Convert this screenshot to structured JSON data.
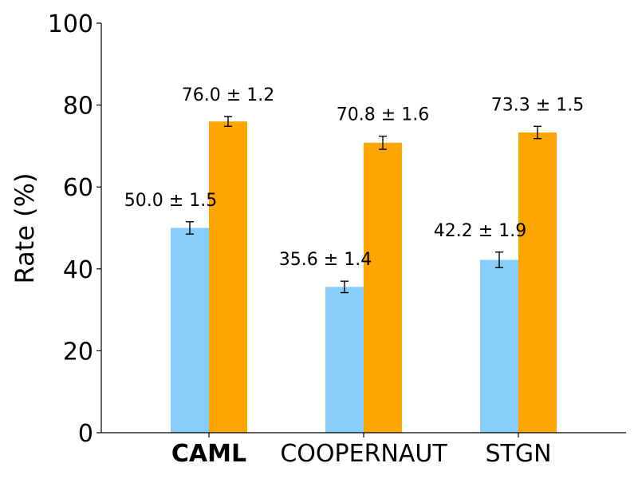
{
  "chart_data": {
    "type": "bar",
    "title": "",
    "xlabel": "",
    "ylabel": "Rate (%)",
    "ylim": [
      0,
      100
    ],
    "yticks": [
      "0",
      "20",
      "40",
      "60",
      "80",
      "100"
    ],
    "categories": [
      "CAML",
      "COOPERNAUT",
      "STGN"
    ],
    "highlighted_category": "CAML",
    "grid": false,
    "legend": null,
    "series": [
      {
        "name": "series-1",
        "color": "#87CEFA",
        "values": [
          50.0,
          35.6,
          42.2
        ],
        "errors": [
          1.5,
          1.4,
          1.9
        ],
        "labels": [
          "50.0 ± 1.5",
          "35.6 ± 1.4",
          "42.2 ± 1.9"
        ]
      },
      {
        "name": "series-2",
        "color": "#FFA500",
        "values": [
          76.0,
          70.8,
          73.3
        ],
        "errors": [
          1.2,
          1.6,
          1.5
        ],
        "labels": [
          "76.0 ± 1.2",
          "70.8 ± 1.6",
          "73.3 ± 1.5"
        ]
      }
    ]
  }
}
